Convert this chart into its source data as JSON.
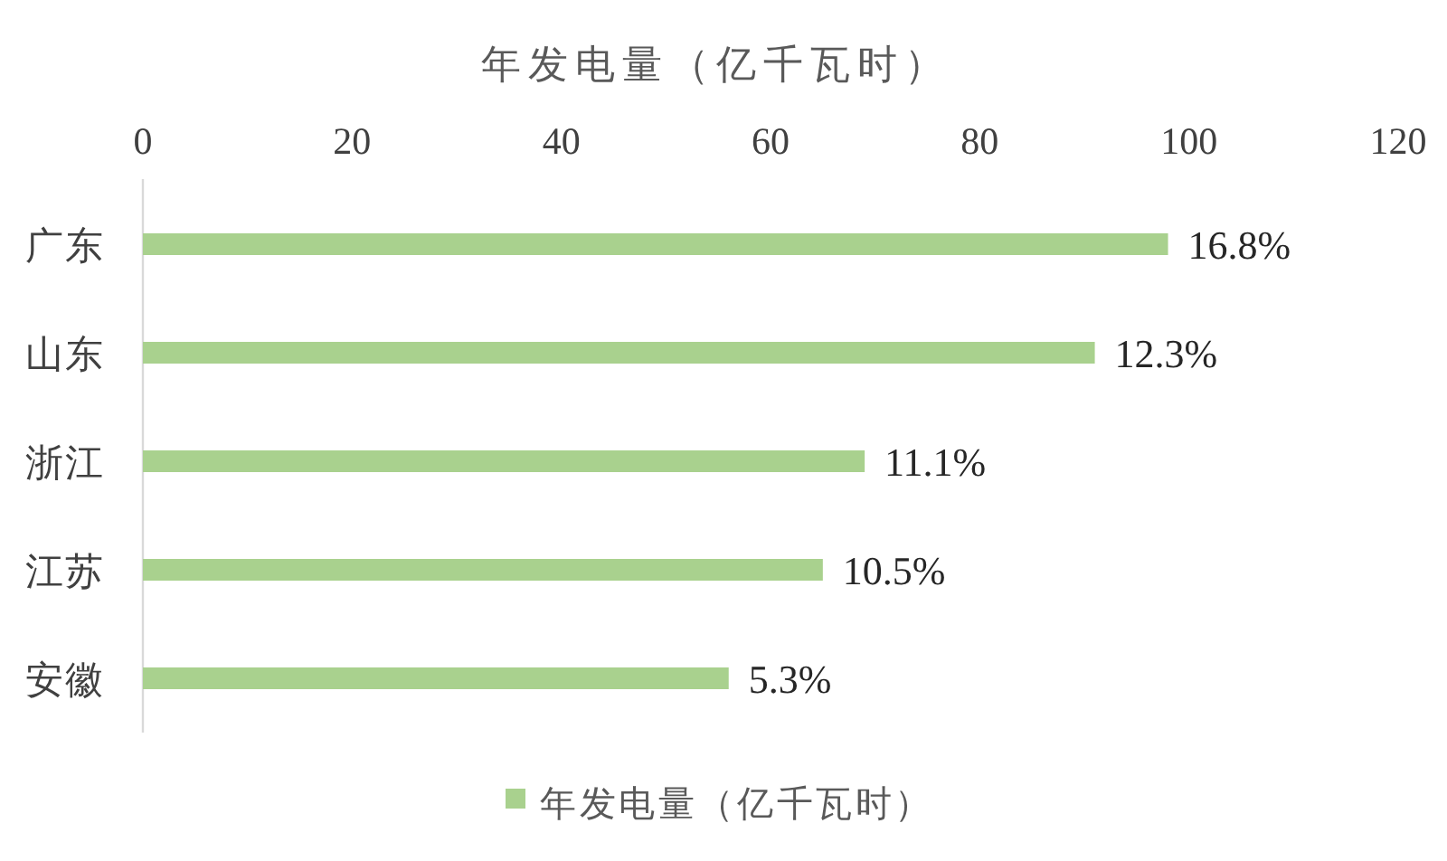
{
  "chart_data": {
    "type": "bar",
    "orientation": "horizontal",
    "title": "年发电量（亿千瓦时）",
    "categories": [
      "广东",
      "山东",
      "浙江",
      "江苏",
      "安徽"
    ],
    "series": [
      {
        "name": "年发电量（亿千瓦时）",
        "color": "#a9d18e",
        "values": [
          98,
          91,
          69,
          65,
          56
        ]
      }
    ],
    "annotations": [
      {
        "text": "16.8%",
        "x": 98,
        "y": "广东"
      },
      {
        "text": "12.3%",
        "x": 91,
        "y": "山东"
      },
      {
        "text": "11.1%",
        "x": 69,
        "y": "浙江"
      },
      {
        "text": "10.5%",
        "x": 65,
        "y": "江苏"
      },
      {
        "text": "5.3%",
        "x": 56,
        "y": "安徽"
      }
    ],
    "xlim": [
      0,
      120
    ],
    "xticks": [
      0,
      20,
      40,
      60,
      80,
      100,
      120
    ],
    "legend": "bottom"
  }
}
